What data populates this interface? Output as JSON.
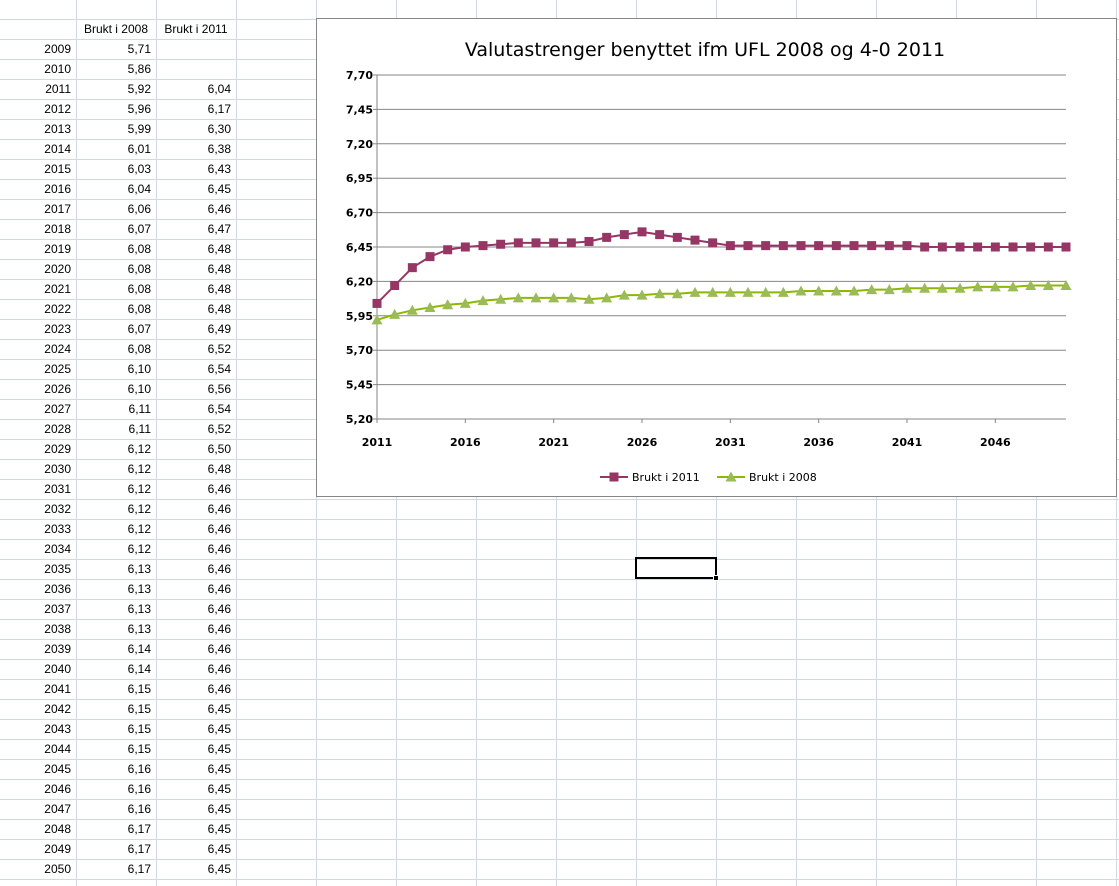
{
  "sheet": {
    "headers": [
      "",
      "Brukt i 2008",
      "Brukt i 2011"
    ],
    "rows": [
      [
        "2009",
        "5,71",
        ""
      ],
      [
        "2010",
        "5,86",
        ""
      ],
      [
        "2011",
        "5,92",
        "6,04"
      ],
      [
        "2012",
        "5,96",
        "6,17"
      ],
      [
        "2013",
        "5,99",
        "6,30"
      ],
      [
        "2014",
        "6,01",
        "6,38"
      ],
      [
        "2015",
        "6,03",
        "6,43"
      ],
      [
        "2016",
        "6,04",
        "6,45"
      ],
      [
        "2017",
        "6,06",
        "6,46"
      ],
      [
        "2018",
        "6,07",
        "6,47"
      ],
      [
        "2019",
        "6,08",
        "6,48"
      ],
      [
        "2020",
        "6,08",
        "6,48"
      ],
      [
        "2021",
        "6,08",
        "6,48"
      ],
      [
        "2022",
        "6,08",
        "6,48"
      ],
      [
        "2023",
        "6,07",
        "6,49"
      ],
      [
        "2024",
        "6,08",
        "6,52"
      ],
      [
        "2025",
        "6,10",
        "6,54"
      ],
      [
        "2026",
        "6,10",
        "6,56"
      ],
      [
        "2027",
        "6,11",
        "6,54"
      ],
      [
        "2028",
        "6,11",
        "6,52"
      ],
      [
        "2029",
        "6,12",
        "6,50"
      ],
      [
        "2030",
        "6,12",
        "6,48"
      ],
      [
        "2031",
        "6,12",
        "6,46"
      ],
      [
        "2032",
        "6,12",
        "6,46"
      ],
      [
        "2033",
        "6,12",
        "6,46"
      ],
      [
        "2034",
        "6,12",
        "6,46"
      ],
      [
        "2035",
        "6,13",
        "6,46"
      ],
      [
        "2036",
        "6,13",
        "6,46"
      ],
      [
        "2037",
        "6,13",
        "6,46"
      ],
      [
        "2038",
        "6,13",
        "6,46"
      ],
      [
        "2039",
        "6,14",
        "6,46"
      ],
      [
        "2040",
        "6,14",
        "6,46"
      ],
      [
        "2041",
        "6,15",
        "6,46"
      ],
      [
        "2042",
        "6,15",
        "6,45"
      ],
      [
        "2043",
        "6,15",
        "6,45"
      ],
      [
        "2044",
        "6,15",
        "6,45"
      ],
      [
        "2045",
        "6,16",
        "6,45"
      ],
      [
        "2046",
        "6,16",
        "6,45"
      ],
      [
        "2047",
        "6,16",
        "6,45"
      ],
      [
        "2048",
        "6,17",
        "6,45"
      ],
      [
        "2049",
        "6,17",
        "6,45"
      ],
      [
        "2050",
        "6,17",
        "6,45"
      ]
    ]
  },
  "chart_data": {
    "type": "line",
    "title": "Valutastrenger benyttet ifm UFL 2008 og 4-0 2011",
    "xlabel": "",
    "ylabel": "",
    "x": [
      2011,
      2012,
      2013,
      2014,
      2015,
      2016,
      2017,
      2018,
      2019,
      2020,
      2021,
      2022,
      2023,
      2024,
      2025,
      2026,
      2027,
      2028,
      2029,
      2030,
      2031,
      2032,
      2033,
      2034,
      2035,
      2036,
      2037,
      2038,
      2039,
      2040,
      2041,
      2042,
      2043,
      2044,
      2045,
      2046,
      2047,
      2048,
      2049,
      2050
    ],
    "x_ticks": [
      "2011",
      "2016",
      "2021",
      "2026",
      "2031",
      "2036",
      "2041",
      "2046"
    ],
    "y_ticks": [
      "5,20",
      "5,45",
      "5,70",
      "5,95",
      "6,20",
      "6,45",
      "6,70",
      "6,95",
      "7,20",
      "7,45",
      "7,70"
    ],
    "ylim": [
      5.2,
      7.7
    ],
    "grid": "horizontal",
    "legend_position": "bottom",
    "series": [
      {
        "name": "Brukt i 2011",
        "color": "#953664",
        "marker": "square",
        "values": [
          6.04,
          6.17,
          6.3,
          6.38,
          6.43,
          6.45,
          6.46,
          6.47,
          6.48,
          6.48,
          6.48,
          6.48,
          6.49,
          6.52,
          6.54,
          6.56,
          6.54,
          6.52,
          6.5,
          6.48,
          6.46,
          6.46,
          6.46,
          6.46,
          6.46,
          6.46,
          6.46,
          6.46,
          6.46,
          6.46,
          6.46,
          6.45,
          6.45,
          6.45,
          6.45,
          6.45,
          6.45,
          6.45,
          6.45,
          6.45
        ]
      },
      {
        "name": "Brukt i 2008",
        "color": "#9bbb59",
        "line_color": "#8db800",
        "marker": "triangle",
        "values": [
          5.92,
          5.96,
          5.99,
          6.01,
          6.03,
          6.04,
          6.06,
          6.07,
          6.08,
          6.08,
          6.08,
          6.08,
          6.07,
          6.08,
          6.1,
          6.1,
          6.11,
          6.11,
          6.12,
          6.12,
          6.12,
          6.12,
          6.12,
          6.12,
          6.13,
          6.13,
          6.13,
          6.13,
          6.14,
          6.14,
          6.15,
          6.15,
          6.15,
          6.15,
          6.16,
          6.16,
          6.16,
          6.17,
          6.17,
          6.17
        ]
      }
    ]
  }
}
